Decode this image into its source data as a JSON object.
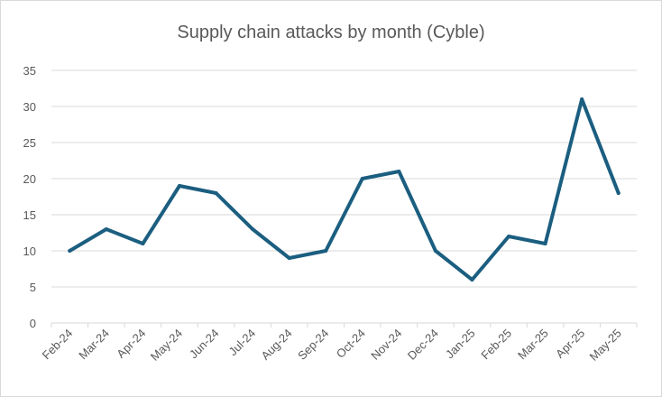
{
  "chart_data": {
    "type": "line",
    "title": "Supply chain attacks by month (Cyble)",
    "xlabel": "",
    "ylabel": "",
    "categories": [
      "Feb-24",
      "Mar-24",
      "Apr-24",
      "May-24",
      "Jun-24",
      "Jul-24",
      "Aug-24",
      "Sep-24",
      "Oct-24",
      "Nov-24",
      "Dec-24",
      "Jan-25",
      "Feb-25",
      "Mar-25",
      "Apr-25",
      "May-25"
    ],
    "series": [
      {
        "values": [
          10,
          13,
          11,
          19,
          18,
          13,
          9,
          10,
          20,
          21,
          10,
          6,
          12,
          11,
          31,
          18
        ],
        "color": "#1b5e80"
      }
    ],
    "ylim": [
      0,
      35
    ],
    "yticks": [
      0,
      5,
      10,
      15,
      20,
      25,
      30,
      35
    ],
    "grid": true,
    "legend": "none"
  }
}
